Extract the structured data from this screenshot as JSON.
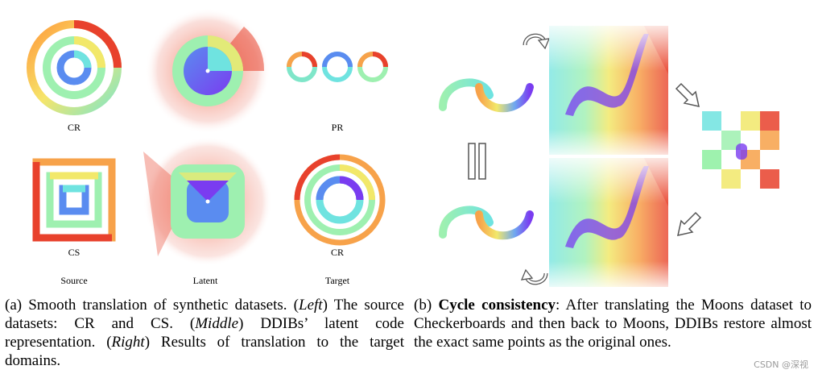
{
  "panel_a": {
    "labels": {
      "cr_top": "CR",
      "pr": "PR",
      "cs": "CS",
      "cr_bottom": "CR",
      "source": "Source",
      "latent": "Latent",
      "target": "Target"
    },
    "caption": {
      "prefix": "(a) Smooth translation of synthetic datasets. (",
      "left": "Left",
      "part2": ") The source datasets: CR and CS. (",
      "middle": "Middle",
      "part3": ") DDIBs’ latent code representation. (",
      "right": "Right",
      "part4": ") Results of translation to the target domains."
    }
  },
  "panel_b": {
    "caption": {
      "prefix": "(b) ",
      "bold": "Cycle consistency",
      "rest": ": After translating the Moons dataset to Checkerboards and then back to Moons, DDIBs restore almost the exact same points as the original ones."
    }
  },
  "watermark": "CSDN @深视",
  "colors": {
    "red": "#e8412c",
    "orange": "#f7a24a",
    "yellow": "#f2e86a",
    "green": "#8ef0a0",
    "cyan": "#6fe3e0",
    "blue": "#5a8cf0",
    "purple": "#7a3cf0"
  }
}
